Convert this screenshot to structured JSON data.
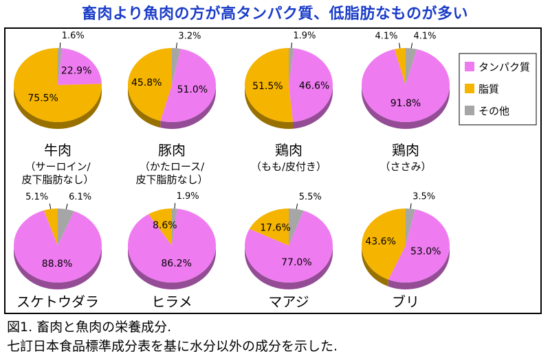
{
  "page": {
    "title": "畜肉より魚肉の方が高タンパク質、低脂肪なものが多い",
    "caption_line1": "図1. 畜肉と魚肉の栄養成分.",
    "caption_line2": "七訂日本食品標準成分表を基に水分以外の成分を示した."
  },
  "chart_data": {
    "type": "pie",
    "colors": {
      "protein": "#ee7cf0",
      "fat": "#f5b400",
      "other": "#a6a6a6"
    },
    "legend": {
      "position": "right",
      "items": [
        {
          "key": "protein",
          "label": "タンパク質"
        },
        {
          "key": "fat",
          "label": "脂質"
        },
        {
          "key": "other",
          "label": "その他"
        }
      ]
    },
    "charts": [
      {
        "name": "牛肉",
        "sub": [
          "（サーロイン/",
          "皮下脂肪なし）"
        ],
        "protein": 22.9,
        "fat": 75.5,
        "other": 1.6
      },
      {
        "name": "豚肉",
        "sub": [
          "（かたロース/",
          "皮下脂肪なし）"
        ],
        "protein": 51.0,
        "fat": 45.8,
        "other": 3.2
      },
      {
        "name": "鶏肉",
        "sub": [
          "（もも/皮付き）"
        ],
        "protein": 46.6,
        "fat": 51.5,
        "other": 1.9
      },
      {
        "name": "鶏肉",
        "sub": [
          "（ささみ）"
        ],
        "protein": 91.8,
        "fat": 4.1,
        "other": 4.1
      },
      {
        "name": "スケトウダラ",
        "sub": [],
        "protein": 88.8,
        "fat": 5.1,
        "other": 6.1
      },
      {
        "name": "ヒラメ",
        "sub": [],
        "protein": 86.2,
        "fat": 8.6,
        "other": 1.9
      },
      {
        "name": "マアジ",
        "sub": [],
        "protein": 77.0,
        "fat": 17.6,
        "other": 5.5
      },
      {
        "name": "ブリ",
        "sub": [],
        "protein": 53.0,
        "fat": 43.6,
        "other": 3.5
      }
    ]
  }
}
